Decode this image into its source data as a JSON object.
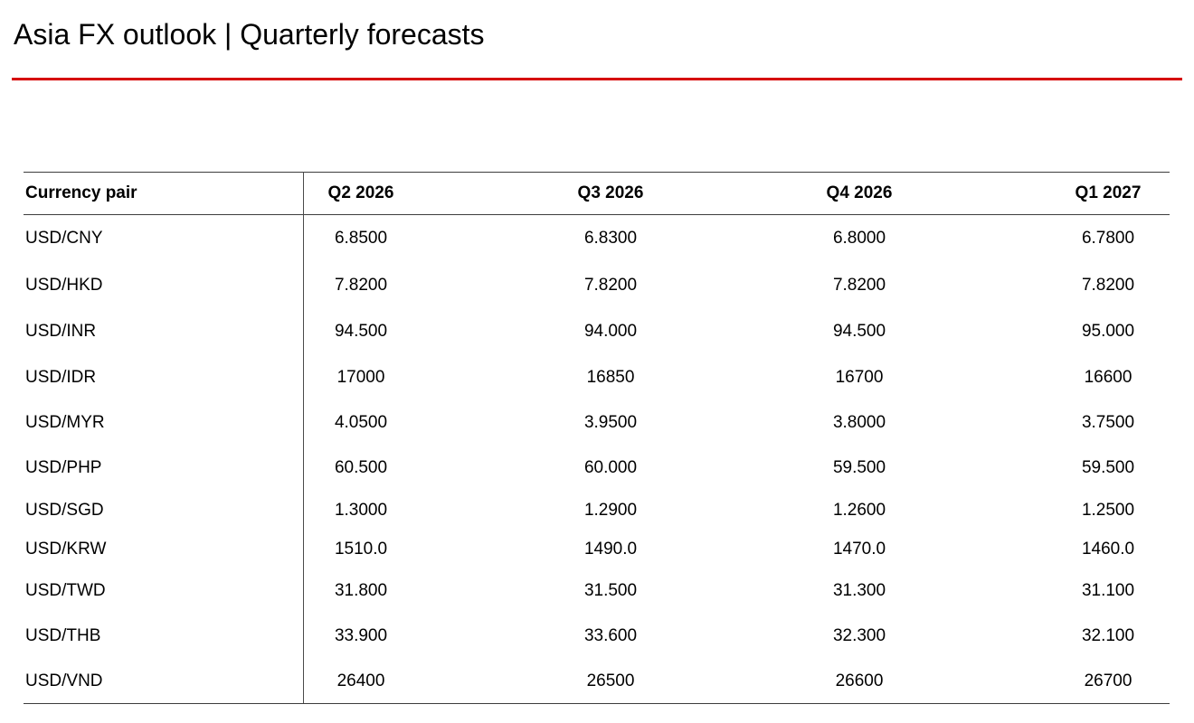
{
  "header": {
    "title": "Asia FX outlook | Quarterly forecasts"
  },
  "theme": {
    "accent_red": "#d60000",
    "rule_color": "#3d3d3d"
  },
  "table": {
    "columns": [
      "Currency pair",
      "Q2 2026",
      "Q3 2026",
      "Q4 2026",
      "Q1 2027"
    ],
    "rows": [
      {
        "pair": "USD/CNY",
        "values": [
          "6.8500",
          "6.8300",
          "6.8000",
          "6.7800"
        ]
      },
      {
        "pair": "USD/HKD",
        "values": [
          "7.8200",
          "7.8200",
          "7.8200",
          "7.8200"
        ]
      },
      {
        "pair": "USD/INR",
        "values": [
          "94.500",
          "94.000",
          "94.500",
          "95.000"
        ]
      },
      {
        "pair": "USD/IDR",
        "values": [
          "17000",
          "16850",
          "16700",
          "16600"
        ]
      },
      {
        "pair": "USD/MYR",
        "values": [
          "4.0500",
          "3.9500",
          "3.8000",
          "3.7500"
        ]
      },
      {
        "pair": "USD/PHP",
        "values": [
          "60.500",
          "60.000",
          "59.500",
          "59.500"
        ]
      },
      {
        "pair": "USD/SGD",
        "values": [
          "1.3000",
          "1.2900",
          "1.2600",
          "1.2500"
        ]
      },
      {
        "pair": "USD/KRW",
        "values": [
          "1510.0",
          "1490.0",
          "1470.0",
          "1460.0"
        ]
      },
      {
        "pair": "USD/TWD",
        "values": [
          "31.800",
          "31.500",
          "31.300",
          "31.100"
        ]
      },
      {
        "pair": "USD/THB",
        "values": [
          "33.900",
          "33.600",
          "32.300",
          "32.100"
        ]
      },
      {
        "pair": "USD/VND",
        "values": [
          "26400",
          "26500",
          "26600",
          "26700"
        ]
      }
    ]
  }
}
